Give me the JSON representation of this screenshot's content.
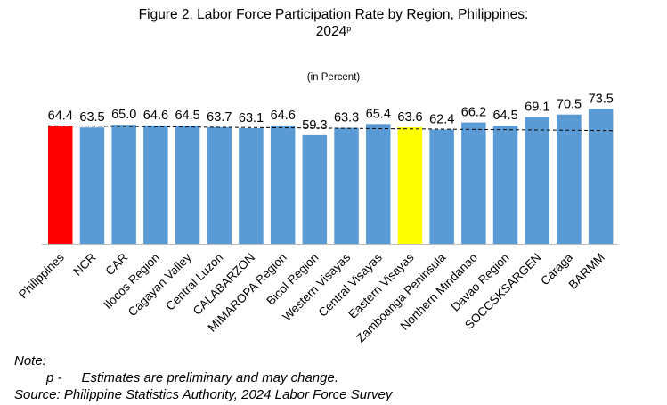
{
  "chart_data": {
    "type": "bar",
    "title": "Figure 2. Labor Force Participation Rate by Region, Philippines:",
    "title_year": "2024",
    "title_year_superscript": "p",
    "subtitle": "(in Percent)",
    "categories": [
      "Philippines",
      "NCR",
      "CAR",
      "Ilocos Region",
      "Cagayan Valley",
      "Central Luzon",
      "CALABARZON",
      "MIMAROPA Region",
      "Bicol Region",
      "Western Visayas",
      "Central Visayas",
      "Eastern Visayas",
      "Zamboanga Peninsula",
      "Northern Mindanao",
      "Davao Region",
      "SOCCSKSARGEN",
      "Caraga",
      "BARMM"
    ],
    "values": [
      64.4,
      63.5,
      65.0,
      64.6,
      64.5,
      63.7,
      63.1,
      64.6,
      59.3,
      63.3,
      65.4,
      63.6,
      62.4,
      66.2,
      64.5,
      69.1,
      70.5,
      73.5
    ],
    "value_labels": [
      "64.4",
      "63.5",
      "65.0",
      "64.6",
      "64.5",
      "63.7",
      "63.1",
      "64.6",
      "59.3",
      "63.3",
      "65.4",
      "63.6",
      "62.4",
      "66.2",
      "64.5",
      "69.1",
      "70.5",
      "73.5"
    ],
    "bar_colors": [
      "#ff0000",
      "#5b9bd5",
      "#5b9bd5",
      "#5b9bd5",
      "#5b9bd5",
      "#5b9bd5",
      "#5b9bd5",
      "#5b9bd5",
      "#5b9bd5",
      "#5b9bd5",
      "#5b9bd5",
      "#ffff00",
      "#5b9bd5",
      "#5b9bd5",
      "#5b9bd5",
      "#5b9bd5",
      "#5b9bd5",
      "#5b9bd5"
    ],
    "trendline": {
      "style": "dashed",
      "color": "#000000",
      "start_value": 64.4,
      "end_value": 61.8
    },
    "ylim": [
      0,
      80
    ],
    "grid": false,
    "legend": "none"
  },
  "notes": {
    "heading": "Note:",
    "p_key": "p -",
    "p_text": "Estimates are preliminary and may change.",
    "source": "Source: Philippine Statistics Authority, 2024 Labor Force Survey"
  }
}
